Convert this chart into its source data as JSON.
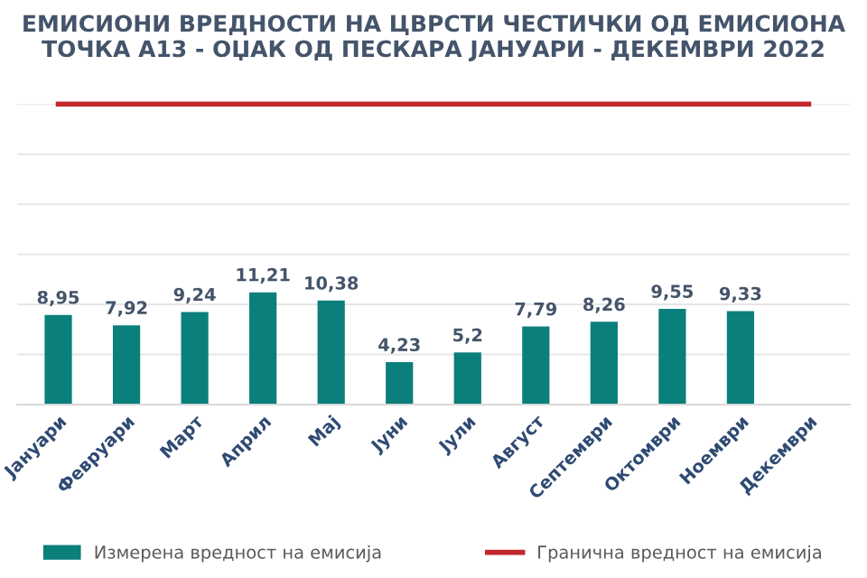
{
  "chart_data": {
    "type": "bar",
    "title": "ЕМИСИОНИ ВРЕДНОСТИ НА ЦВРСТИ ЧЕСТИЧКИ ОД ЕМИСИОНА\nТОЧКА А13 - ОЏАК ОД ПЕСКАРА ЈАНУАРИ - ДЕКЕМВРИ 2022",
    "categories": [
      "Јануари",
      "Февруари",
      "Март",
      "Април",
      "Мај",
      "Јуни",
      "Јули",
      "Август",
      "Септември",
      "Октомври",
      "Ноември",
      "Декември"
    ],
    "series": [
      {
        "name": "Измерена вредност на емисија",
        "color": "#0b7f7b",
        "values": [
          8.95,
          7.92,
          9.24,
          11.21,
          10.38,
          4.23,
          5.2,
          7.79,
          8.26,
          9.55,
          9.33,
          null
        ],
        "value_labels": [
          "8,95",
          "7,92",
          "9,24",
          "11,21",
          "10,38",
          "4,23",
          "5,2",
          "7,79",
          "8,26",
          "9,55",
          "9,33",
          null
        ]
      },
      {
        "name": "Гранична вредност на емисија",
        "type": "line",
        "color": "#c0282d",
        "values": [
          30,
          30,
          30,
          30,
          30,
          30,
          30,
          30,
          30,
          30,
          30,
          30
        ]
      }
    ],
    "ylim": [
      0,
      30
    ],
    "yticks": [
      {
        "value": 0,
        "label": null
      },
      {
        "value": 5,
        "label": null
      },
      {
        "value": 10,
        "label": null
      },
      {
        "value": 15,
        "label": null
      },
      {
        "value": 20,
        "label": null
      },
      {
        "value": 25,
        "label": null
      },
      {
        "value": 30,
        "label": null
      }
    ],
    "grid": "y",
    "legend": "bottom",
    "tick_labels": "x"
  }
}
